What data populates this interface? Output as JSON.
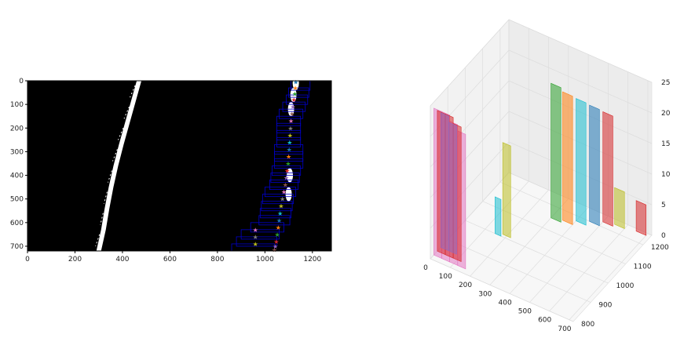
{
  "chart_data": [
    {
      "type": "scatter",
      "xlim": [
        0,
        1280
      ],
      "ylim": [
        720,
        0
      ],
      "x_ticks": [
        "0",
        "200",
        "400",
        "600",
        "800",
        "1000",
        "1200"
      ],
      "y_ticks": [
        "0",
        "100",
        "200",
        "300",
        "400",
        "500",
        "600",
        "700"
      ],
      "background": "#000000",
      "window_color": "#0000cc",
      "lane_pixel_color": "#ffffff",
      "left_lane": {
        "x": [
          470,
          445,
          420,
          395,
          372,
          352,
          335,
          320,
          300
        ],
        "y": [
          0,
          90,
          180,
          270,
          360,
          450,
          540,
          630,
          720
        ]
      },
      "right_lane_pixels": {
        "x": [
          1130,
          1120,
          1110,
          1105,
          1100
        ],
        "y": [
          10,
          60,
          120,
          400,
          480
        ]
      },
      "sliding_windows": [
        {
          "x": [
            1110,
            1190
          ],
          "y": [
            0,
            40
          ]
        },
        {
          "x": [
            1100,
            1185
          ],
          "y": [
            30,
            70
          ]
        },
        {
          "x": [
            1090,
            1180
          ],
          "y": [
            60,
            100
          ]
        },
        {
          "x": [
            1075,
            1170
          ],
          "y": [
            90,
            130
          ]
        },
        {
          "x": [
            1060,
            1160
          ],
          "y": [
            120,
            160
          ]
        },
        {
          "x": [
            1050,
            1150
          ],
          "y": [
            150,
            190
          ]
        },
        {
          "x": [
            1050,
            1150
          ],
          "y": [
            180,
            220
          ]
        },
        {
          "x": [
            1050,
            1150
          ],
          "y": [
            210,
            250
          ]
        },
        {
          "x": [
            1050,
            1150
          ],
          "y": [
            240,
            280
          ]
        },
        {
          "x": [
            1040,
            1160
          ],
          "y": [
            270,
            310
          ]
        },
        {
          "x": [
            1040,
            1160
          ],
          "y": [
            300,
            340
          ]
        },
        {
          "x": [
            1040,
            1160
          ],
          "y": [
            330,
            370
          ]
        },
        {
          "x": [
            1030,
            1150
          ],
          "y": [
            360,
            400
          ]
        },
        {
          "x": [
            1025,
            1145
          ],
          "y": [
            390,
            430
          ]
        },
        {
          "x": [
            1020,
            1140
          ],
          "y": [
            420,
            460
          ]
        },
        {
          "x": [
            1000,
            1130
          ],
          "y": [
            450,
            490
          ]
        },
        {
          "x": [
            990,
            1120
          ],
          "y": [
            480,
            520
          ]
        },
        {
          "x": [
            985,
            1115
          ],
          "y": [
            510,
            550
          ]
        },
        {
          "x": [
            980,
            1110
          ],
          "y": [
            540,
            580
          ]
        },
        {
          "x": [
            975,
            1105
          ],
          "y": [
            570,
            610
          ]
        },
        {
          "x": [
            940,
            1080
          ],
          "y": [
            600,
            640
          ]
        },
        {
          "x": [
            900,
            1060
          ],
          "y": [
            630,
            670
          ]
        },
        {
          "x": [
            880,
            1050
          ],
          "y": [
            660,
            700
          ]
        },
        {
          "x": [
            860,
            1040
          ],
          "y": [
            690,
            720
          ]
        }
      ],
      "window_centers": {
        "x": [
          1130,
          1128,
          1126,
          1122,
          1118,
          1114,
          1110,
          1108,
          1106,
          1104,
          1102,
          1100,
          1098,
          1094,
          1090,
          1086,
          1080,
          1074,
          1068,
          1064,
          1060,
          1056,
          1052,
          1048,
          1044,
          1040,
          960,
          960,
          960
        ],
        "y": [
          5,
          30,
          55,
          80,
          110,
          140,
          170,
          200,
          230,
          260,
          290,
          320,
          350,
          380,
          410,
          440,
          470,
          500,
          530,
          560,
          590,
          620,
          650,
          680,
          700,
          715,
          630,
          660,
          690
        ],
        "colors": [
          "#1f77b4",
          "#ff7f0e",
          "#2ca02c",
          "#d62728",
          "#9467bd",
          "#8c564b",
          "#e377c2",
          "#7f7f7f",
          "#bcbd22",
          "#17becf"
        ]
      }
    },
    {
      "type": "area",
      "projection": "3d",
      "xlim": [
        0,
        720
      ],
      "ylim": [
        800,
        1250
      ],
      "zlim": [
        0,
        25
      ],
      "x_ticks": [
        "0",
        "100",
        "200",
        "300",
        "400",
        "500",
        "600",
        "700"
      ],
      "y_ticks": [
        "800",
        "900",
        "1000",
        "1100",
        "1200"
      ],
      "z_ticks": [
        "0",
        "5",
        "10",
        "15",
        "20",
        "25"
      ],
      "grid": true,
      "series_colors": [
        "#e377c2",
        "#d62728",
        "#9467bd",
        "#1f77b4",
        "#17becf",
        "#2ca02c",
        "#ff7f0e",
        "#bcbd22"
      ],
      "histograms": [
        {
          "color": "#e377c2",
          "x": [
            [
              0,
              40
            ],
            [
              40,
              80
            ],
            [
              80,
              120
            ],
            [
              120,
              160
            ]
          ],
          "y": 820,
          "z": [
            24,
            24,
            23,
            22
          ]
        },
        {
          "color": "#d62728",
          "x": [
            [
              0,
              40
            ],
            [
              40,
              80
            ],
            [
              80,
              120
            ]
          ],
          "y": 840,
          "z": [
            23,
            23,
            22
          ]
        },
        {
          "color": "#9467bd",
          "x": [
            [
              0,
              40
            ],
            [
              40,
              80
            ]
          ],
          "y": 860,
          "z": [
            22,
            21
          ]
        },
        {
          "color": "#17becf",
          "x": [
            [
              150,
              180
            ]
          ],
          "y": 1000,
          "z": [
            6
          ]
        },
        {
          "color": "#bcbd22",
          "x": [
            [
              180,
              220
            ]
          ],
          "y": 1010,
          "z": [
            15
          ]
        },
        {
          "color": "#2ca02c",
          "x": [
            [
              300,
              350
            ]
          ],
          "y": 1150,
          "z": [
            22
          ]
        },
        {
          "color": "#ff7f0e",
          "x": [
            [
              350,
              400
            ]
          ],
          "y": 1160,
          "z": [
            21
          ]
        },
        {
          "color": "#17becf",
          "x": [
            [
              400,
              450
            ]
          ],
          "y": 1180,
          "z": [
            20
          ]
        },
        {
          "color": "#1f77b4",
          "x": [
            [
              450,
              500
            ]
          ],
          "y": 1200,
          "z": [
            19
          ]
        },
        {
          "color": "#d62728",
          "x": [
            [
              500,
              550
            ]
          ],
          "y": 1220,
          "z": [
            18
          ]
        },
        {
          "color": "#bcbd22",
          "x": [
            [
              550,
              600
            ]
          ],
          "y": 1230,
          "z": [
            6
          ]
        },
        {
          "color": "#d62728",
          "x": [
            [
              650,
              700
            ]
          ],
          "y": 1240,
          "z": [
            5
          ]
        }
      ]
    }
  ]
}
